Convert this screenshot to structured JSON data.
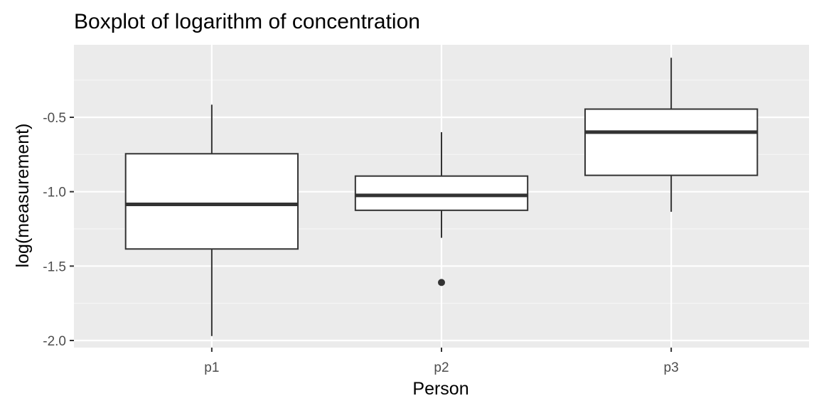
{
  "chart_data": {
    "type": "boxplot",
    "title": "Boxplot of logarithm of concentration",
    "xlabel": "Person",
    "ylabel": "log(measurement)",
    "categories": [
      "p1",
      "p2",
      "p3"
    ],
    "ylim": [
      -2.04,
      -0.08
    ],
    "y_ticks": [
      -2.0,
      -1.5,
      -1.0,
      -0.5
    ],
    "y_tick_labels": [
      "-2.0",
      "-1.5",
      "-1.0",
      "-0.5"
    ],
    "grid": true,
    "legend": "none",
    "boxes": [
      {
        "category": "p1",
        "whisker_low": -1.97,
        "q1": -1.385,
        "median": -1.085,
        "q3": -0.745,
        "whisker_high": -0.415,
        "outliers": []
      },
      {
        "category": "p2",
        "whisker_low": -1.31,
        "q1": -1.125,
        "median": -1.025,
        "q3": -0.895,
        "whisker_high": -0.6,
        "outliers": [
          -1.61
        ]
      },
      {
        "category": "p3",
        "whisker_low": -1.135,
        "q1": -0.89,
        "median": -0.6,
        "q3": -0.445,
        "whisker_high": -0.1,
        "outliers": []
      }
    ]
  },
  "colors": {
    "panel_background": "#ebebeb",
    "grid_major": "#ffffff",
    "grid_minor": "#f5f5f5",
    "box_stroke": "#333333",
    "box_fill": "#ffffff",
    "axis_text": "#4d4d4d",
    "title_text": "#000000"
  }
}
